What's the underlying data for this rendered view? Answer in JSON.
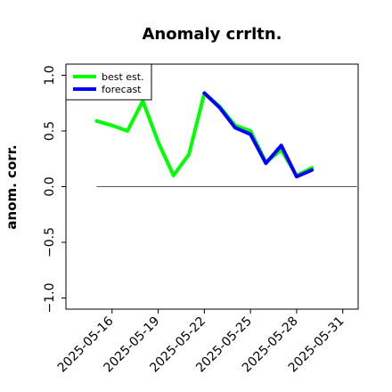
{
  "chart_data": {
    "type": "line",
    "title": "Anomaly crrltn.",
    "xlabel": "",
    "ylabel": "anom. corr.",
    "x": [
      "2025-05-15",
      "2025-05-16",
      "2025-05-17",
      "2025-05-18",
      "2025-05-19",
      "2025-05-20",
      "2025-05-21",
      "2025-05-22",
      "2025-05-23",
      "2025-05-24",
      "2025-05-25",
      "2025-05-26",
      "2025-05-27",
      "2025-05-28",
      "2025-05-29"
    ],
    "xlim": [
      "2025-05-13",
      "2025-06-01"
    ],
    "ylim": [
      -1.1,
      1.1
    ],
    "yticks": [
      -1.0,
      -0.5,
      0.0,
      0.5,
      1.0
    ],
    "ytick_labels": [
      "−1.0",
      "−0.5",
      "0.0",
      "0.5",
      "1.0"
    ],
    "xticks": [
      "2025-05-16",
      "2025-05-19",
      "2025-05-22",
      "2025-05-25",
      "2025-05-28",
      "2025-05-31"
    ],
    "highlighted_xtick": "2025-05-22",
    "highlight_color": "#228B22",
    "zero_line": 0.0,
    "legend_position": "upper-left",
    "series": [
      {
        "name": "best est.",
        "color": "#00ff00",
        "values": [
          0.59,
          0.55,
          0.5,
          0.77,
          0.4,
          0.1,
          0.29,
          0.84,
          0.72,
          0.55,
          0.5,
          0.22,
          0.33,
          0.1,
          0.17
        ]
      },
      {
        "name": "forecast",
        "color": "#0000ff",
        "values": [
          null,
          null,
          null,
          null,
          null,
          null,
          null,
          0.84,
          0.71,
          0.53,
          0.47,
          0.21,
          0.37,
          0.09,
          0.15
        ]
      }
    ]
  }
}
